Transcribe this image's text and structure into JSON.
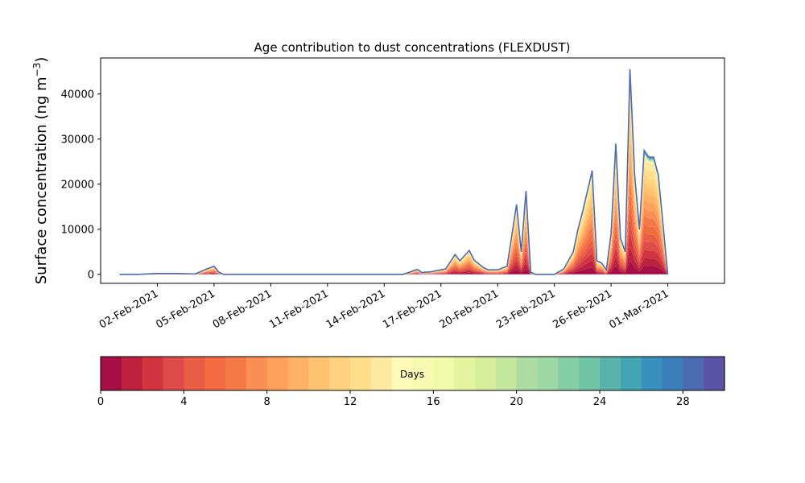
{
  "chart_data": {
    "type": "area",
    "stacked": true,
    "title": "Age contribution to dust concentrations (FLEXDUST)",
    "ylabel": "Surface concentration (ng m",
    "ylabel_sup": "−3",
    "ylabel_close": ")",
    "x_start": "2021-01-31",
    "xlim": [
      "2021-01-30",
      "2021-03-04"
    ],
    "ylim": [
      -2000,
      48000
    ],
    "yticks": [
      0,
      10000,
      20000,
      30000,
      40000
    ],
    "ytick_labels": [
      "0",
      "10000",
      "20000",
      "30000",
      "40000"
    ],
    "xticks": [
      "2021-02-02",
      "2021-02-05",
      "2021-02-08",
      "2021-02-11",
      "2021-02-14",
      "2021-02-17",
      "2021-02-20",
      "2021-02-23",
      "2021-02-26",
      "2021-03-01"
    ],
    "xtick_labels": [
      "02-Feb-2021",
      "05-Feb-2021",
      "08-Feb-2021",
      "11-Feb-2021",
      "14-Feb-2021",
      "17-Feb-2021",
      "20-Feb-2021",
      "23-Feb-2021",
      "26-Feb-2021",
      "01-Mar-2021"
    ],
    "total_concentration": {
      "x": [
        "2021-01-31",
        "2021-02-01",
        "2021-02-02",
        "2021-02-03",
        "2021-02-04",
        "2021-02-04 12:00",
        "2021-02-05",
        "2021-02-05 06:00",
        "2021-02-05 12:00",
        "2021-02-06",
        "2021-02-07",
        "2021-02-08",
        "2021-02-10",
        "2021-02-12",
        "2021-02-14",
        "2021-02-15",
        "2021-02-15 18:00",
        "2021-02-16",
        "2021-02-16 12:00",
        "2021-02-17",
        "2021-02-17 06:00",
        "2021-02-17 18:00",
        "2021-02-18",
        "2021-02-18 12:00",
        "2021-02-18 18:00",
        "2021-02-19 06:00",
        "2021-02-19 12:00",
        "2021-02-20",
        "2021-02-20 12:00",
        "2021-02-21",
        "2021-02-21 06:00",
        "2021-02-21 12:00",
        "2021-02-21 18:00",
        "2021-02-22",
        "2021-02-22 06:00",
        "2021-02-22 12:00",
        "2021-02-23",
        "2021-02-23 12:00",
        "2021-02-24",
        "2021-02-24 06:00",
        "2021-02-24 12:00",
        "2021-02-25",
        "2021-02-25 06:00",
        "2021-02-25 12:00",
        "2021-02-25 18:00",
        "2021-02-26",
        "2021-02-26 06:00",
        "2021-02-26 12:00",
        "2021-02-26 18:00",
        "2021-02-27",
        "2021-02-27 06:00",
        "2021-02-27 12:00",
        "2021-02-27 18:00",
        "2021-02-28",
        "2021-02-28 06:00",
        "2021-02-28 12:00",
        "2021-03-01"
      ],
      "y": [
        0,
        0,
        200,
        200,
        100,
        1000,
        1800,
        500,
        0,
        0,
        0,
        0,
        0,
        0,
        0,
        0,
        1100,
        400,
        600,
        1000,
        1200,
        4400,
        3000,
        5300,
        3200,
        1500,
        1000,
        1000,
        1800,
        15500,
        5000,
        18500,
        500,
        0,
        0,
        0,
        0,
        1200,
        5000,
        10000,
        14000,
        23000,
        3000,
        2500,
        1000,
        9000,
        29000,
        8000,
        5000,
        45500,
        22000,
        10000,
        27500,
        26000,
        26000,
        22000,
        0
      ]
    },
    "colorbar": {
      "label": "Days",
      "range": [
        0,
        30
      ],
      "ticks": [
        0,
        4,
        8,
        12,
        16,
        20,
        24,
        28
      ],
      "tick_labels": [
        "0",
        "4",
        "8",
        "12",
        "16",
        "20",
        "24",
        "28"
      ],
      "colormap": "Spectral",
      "colors": [
        "#a50f45",
        "#bc223f",
        "#d0353f",
        "#de4b4b",
        "#e85e45",
        "#f26b43",
        "#f57a4a",
        "#f98f55",
        "#fca05c",
        "#fdb265",
        "#fdc371",
        "#fed27f",
        "#fedd8b",
        "#feeaa0",
        "#fffbb9",
        "#f6fbb1",
        "#f1f9ab",
        "#e4f4a0",
        "#d6ee9b",
        "#c4e79e",
        "#abdda3",
        "#9dd8a4",
        "#85cea5",
        "#72c4a7",
        "#5ab2ab",
        "#44a5b2",
        "#3990bd",
        "#3c7fb8",
        "#4c6bb0",
        "#5b53a4"
      ]
    }
  }
}
